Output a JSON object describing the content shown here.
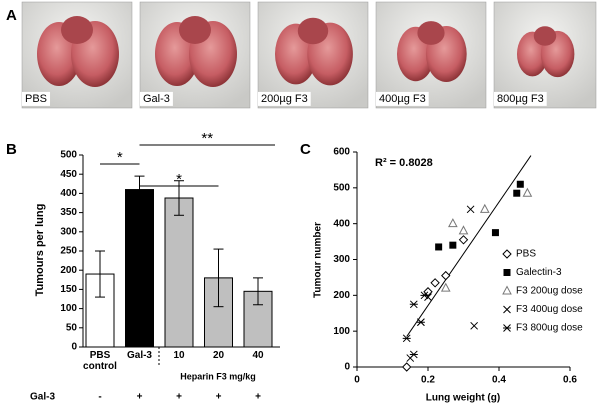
{
  "panel_labels": [
    "A",
    "B",
    "C"
  ],
  "photos": [
    {
      "label": "PBS"
    },
    {
      "label": "Gal-3"
    },
    {
      "label": "200µg F3"
    },
    {
      "label": "400µg F3"
    },
    {
      "label": "800µg F3"
    }
  ],
  "chart_data": [
    {
      "type": "bar",
      "ylabel": "Tumours per lung",
      "categories": [
        "PBS control",
        "Gal-3",
        "10",
        "20",
        "40"
      ],
      "values": [
        190,
        410,
        388,
        180,
        145
      ],
      "errors": [
        60,
        35,
        45,
        75,
        35
      ],
      "colors": [
        "#ffffff",
        "#000000",
        "#bfbfbf",
        "#bfbfbf",
        "#bfbfbf"
      ],
      "ylim": [
        0,
        500
      ],
      "yticks": [
        0,
        50,
        100,
        150,
        200,
        250,
        300,
        350,
        400,
        450,
        500
      ],
      "group_label": "Heparin F3 mg/kg",
      "row_label": "Gal-3",
      "row_signs": [
        "-",
        "+",
        "+",
        "+",
        "+"
      ],
      "significance": [
        {
          "label": "*",
          "from": 0,
          "to": 1
        },
        {
          "label": "*",
          "from": 1,
          "to": 3
        },
        {
          "label": "**",
          "from": 1,
          "to": 4
        }
      ]
    },
    {
      "type": "scatter",
      "xlabel": "Lung weight (g)",
      "ylabel": "Tumour number",
      "annotation": "R² = 0.8028",
      "xlim": [
        0,
        0.6
      ],
      "xticks": [
        0,
        0.2,
        0.4,
        0.6
      ],
      "ylim": [
        0,
        600
      ],
      "yticks": [
        0,
        100,
        200,
        300,
        400,
        500,
        600
      ],
      "series": [
        {
          "name": "PBS",
          "marker": "diamond",
          "x": [
            0.14,
            0.2,
            0.22,
            0.25,
            0.3
          ],
          "y": [
            0,
            210,
            235,
            255,
            355
          ]
        },
        {
          "name": "Galectin-3",
          "marker": "square",
          "x": [
            0.23,
            0.27,
            0.39,
            0.45,
            0.46
          ],
          "y": [
            335,
            340,
            375,
            485,
            510
          ]
        },
        {
          "name": "F3 200ug dose",
          "marker": "triangle",
          "x": [
            0.27,
            0.3,
            0.36,
            0.48,
            0.25
          ],
          "y": [
            400,
            380,
            440,
            485,
            220
          ]
        },
        {
          "name": "F3 400ug dose",
          "marker": "x",
          "x": [
            0.15,
            0.18,
            0.32,
            0.33,
            0.2
          ],
          "y": [
            25,
            125,
            440,
            115,
            195
          ]
        },
        {
          "name": "F3 800ug dose",
          "marker": "asterisk",
          "x": [
            0.14,
            0.16,
            0.16,
            0.19,
            0.18
          ],
          "y": [
            80,
            35,
            175,
            200,
            125
          ]
        }
      ],
      "trend": {
        "x": [
          0.14,
          0.49
        ],
        "y": [
          85,
          590
        ]
      }
    }
  ]
}
